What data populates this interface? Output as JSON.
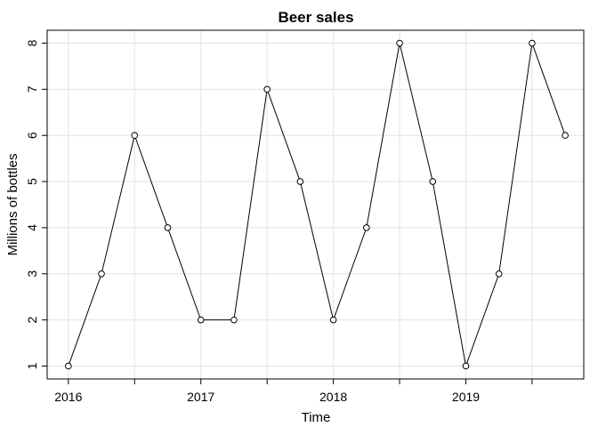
{
  "chart_data": {
    "type": "line",
    "title": "Beer sales",
    "xlabel": "Time",
    "ylabel": "Millions of bottles",
    "x": [
      2016.0,
      2016.25,
      2016.5,
      2016.75,
      2017.0,
      2017.25,
      2017.5,
      2017.75,
      2018.0,
      2018.25,
      2018.5,
      2018.75,
      2019.0,
      2019.25,
      2019.5,
      2019.75
    ],
    "values": [
      1,
      3,
      6,
      4,
      2,
      2,
      7,
      5,
      2,
      4,
      8,
      5,
      1,
      3,
      8,
      6
    ],
    "xlim": [
      2015.84,
      2019.89
    ],
    "ylim": [
      0.72,
      8.28
    ],
    "x_ticks": [
      2016,
      2017,
      2018,
      2019
    ],
    "x_tick_labels": [
      "2016",
      "2017",
      "2018",
      "2019"
    ],
    "x_minor_ticks": [
      2016.5,
      2017.5,
      2018.5,
      2019.5
    ],
    "y_ticks": [
      1,
      2,
      3,
      4,
      5,
      6,
      7,
      8
    ],
    "y_tick_labels": [
      "1",
      "2",
      "3",
      "4",
      "5",
      "6",
      "7",
      "8"
    ],
    "grid": true,
    "markers": "open-circle",
    "line_color": "#000000",
    "grid_color": "#e3e3e3"
  }
}
